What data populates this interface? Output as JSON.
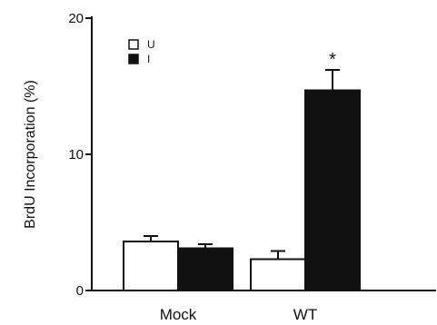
{
  "chart_data": {
    "type": "bar",
    "title": "",
    "xlabel": "",
    "ylabel": "BrdU Incorporation (%)",
    "ylim": [
      0,
      20
    ],
    "yticks": [
      "0",
      "10",
      "20"
    ],
    "categories": [
      "Mock",
      "WT"
    ],
    "series": [
      {
        "name": "U",
        "color": "#ffffff",
        "values": [
          3.6,
          2.3
        ],
        "errors": [
          0.4,
          0.6
        ]
      },
      {
        "name": "I",
        "color": "#111111",
        "values": [
          3.1,
          14.7
        ],
        "errors": [
          0.3,
          1.5
        ]
      }
    ],
    "annotations": [
      {
        "category": "WT",
        "series": "I",
        "text": "*"
      }
    ],
    "legend": "top-left",
    "grid": false
  }
}
